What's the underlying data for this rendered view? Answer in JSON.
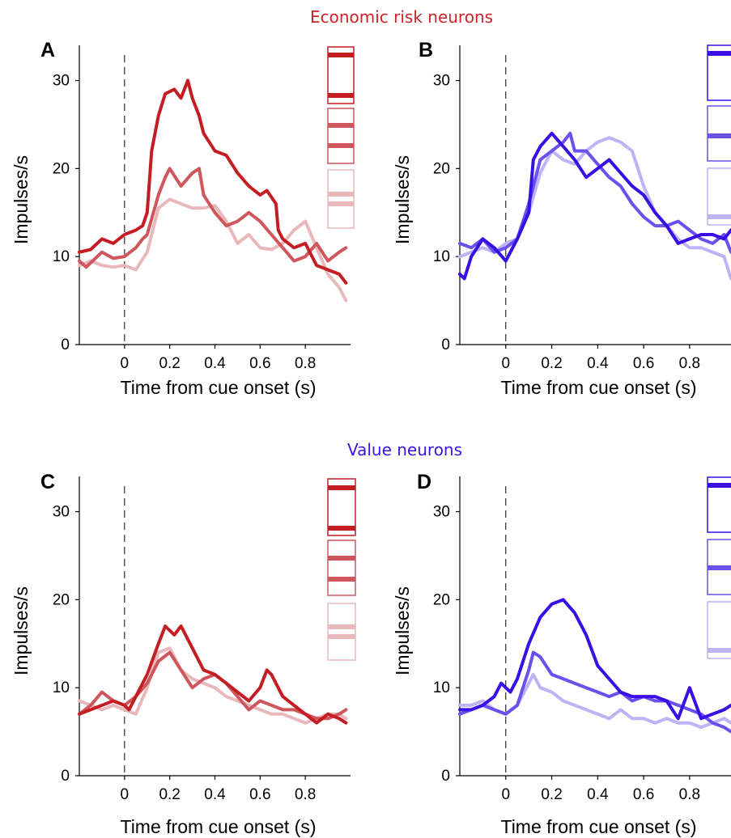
{
  "section_titles": [
    {
      "text": "Economic risk neurons",
      "color": "#cc2228"
    },
    {
      "text": "Value neurons",
      "color": "#3a14e6"
    }
  ],
  "colors": {
    "red": [
      "#c41e24",
      "#cf565c",
      "#e8b8ba"
    ],
    "blue": [
      "#3a0fe6",
      "#6a50ec",
      "#bcb4f5"
    ]
  },
  "chart_data": [
    {
      "panel": "A",
      "type": "line",
      "xlabel": "Time from cue onset (s)",
      "ylabel": "Impulses/s",
      "xlim": [
        -0.2,
        1.0
      ],
      "ylim": [
        0,
        34
      ],
      "xticks": [
        0,
        0.2,
        0.4,
        0.6,
        0.8
      ],
      "xtick_labels": [
        "0",
        "0.2",
        "0.4",
        "0.6",
        "0.8"
      ],
      "yticks": [
        0,
        10,
        20,
        30
      ],
      "ytick_labels": [
        "0",
        "10",
        "20",
        "30"
      ],
      "cue_marker_x": 0,
      "palette": "red",
      "series": [
        {
          "x": [
            -0.2,
            -0.15,
            -0.1,
            -0.05,
            0,
            0.05,
            0.08,
            0.1,
            0.12,
            0.15,
            0.18,
            0.22,
            0.25,
            0.28,
            0.3,
            0.33,
            0.35,
            0.4,
            0.45,
            0.5,
            0.55,
            0.6,
            0.63,
            0.67,
            0.68,
            0.7,
            0.75,
            0.8,
            0.85,
            0.9,
            0.95,
            0.98
          ],
          "y": [
            10.5,
            10.8,
            12,
            11.5,
            12.5,
            13,
            13.5,
            15,
            22,
            26,
            28.5,
            29,
            28,
            30,
            28,
            26,
            24,
            22,
            21.5,
            19.5,
            18,
            17,
            17.5,
            16,
            13,
            12,
            11,
            11.5,
            9,
            8.5,
            8,
            7
          ]
        },
        {
          "x": [
            -0.2,
            -0.17,
            -0.1,
            -0.05,
            0,
            0.05,
            0.08,
            0.1,
            0.15,
            0.18,
            0.2,
            0.25,
            0.3,
            0.33,
            0.35,
            0.4,
            0.45,
            0.5,
            0.55,
            0.6,
            0.65,
            0.7,
            0.75,
            0.8,
            0.85,
            0.9,
            0.95,
            0.98
          ],
          "y": [
            9.5,
            8.8,
            10.5,
            9.8,
            10,
            11,
            12,
            12.5,
            17,
            19,
            20,
            18,
            19.5,
            20,
            17,
            15,
            13.5,
            14,
            15,
            14,
            12.5,
            11,
            9.5,
            10,
            11.5,
            9.5,
            10.5,
            11
          ]
        },
        {
          "x": [
            -0.2,
            -0.15,
            -0.1,
            -0.05,
            0,
            0.05,
            0.1,
            0.15,
            0.2,
            0.25,
            0.3,
            0.35,
            0.4,
            0.45,
            0.5,
            0.55,
            0.6,
            0.65,
            0.7,
            0.75,
            0.8,
            0.85,
            0.9,
            0.95,
            0.98
          ],
          "y": [
            9,
            9.5,
            9,
            8.8,
            9,
            8.5,
            10.5,
            15.5,
            16.5,
            16,
            15.5,
            15.5,
            15.8,
            14,
            11.5,
            12.5,
            11,
            10.8,
            11.5,
            13,
            14,
            11,
            8,
            6.5,
            5
          ]
        }
      ]
    },
    {
      "panel": "B",
      "type": "line",
      "xlabel": "Time from cue onset (s)",
      "ylabel": "Impulses/s",
      "xlim": [
        -0.2,
        0.98
      ],
      "ylim": [
        0,
        34
      ],
      "xticks": [
        0,
        0.2,
        0.4,
        0.6,
        0.8
      ],
      "xtick_labels": [
        "0",
        "0.2",
        "0.4",
        "0.6",
        "0.8"
      ],
      "yticks": [
        0,
        10,
        20,
        30
      ],
      "ytick_labels": [
        "0",
        "10",
        "20",
        "30"
      ],
      "cue_marker_x": 0,
      "palette": "blue",
      "series": [
        {
          "x": [
            -0.2,
            -0.18,
            -0.15,
            -0.1,
            -0.05,
            0,
            0.05,
            0.1,
            0.12,
            0.15,
            0.2,
            0.25,
            0.3,
            0.35,
            0.4,
            0.45,
            0.5,
            0.55,
            0.6,
            0.65,
            0.7,
            0.75,
            0.8,
            0.85,
            0.9,
            0.95,
            0.98
          ],
          "y": [
            8,
            7.5,
            10,
            12,
            11,
            9.5,
            12,
            15,
            21,
            22.5,
            24,
            22.5,
            21,
            19,
            20,
            21,
            19.5,
            18,
            17,
            15,
            13.5,
            11.5,
            12,
            12.5,
            12.5,
            12,
            13
          ]
        },
        {
          "x": [
            -0.2,
            -0.15,
            -0.1,
            -0.05,
            0,
            0.05,
            0.1,
            0.15,
            0.2,
            0.25,
            0.28,
            0.3,
            0.35,
            0.4,
            0.45,
            0.5,
            0.55,
            0.6,
            0.65,
            0.7,
            0.75,
            0.8,
            0.85,
            0.9,
            0.95,
            0.98
          ],
          "y": [
            11.5,
            11,
            12,
            10.5,
            11,
            12,
            16,
            21,
            22,
            23,
            24,
            22,
            22,
            20.5,
            19,
            18,
            16,
            14.5,
            13.5,
            13.5,
            14,
            13,
            12,
            11.5,
            12.5,
            10.5
          ]
        },
        {
          "x": [
            -0.2,
            -0.15,
            -0.1,
            -0.05,
            0,
            0.05,
            0.1,
            0.15,
            0.2,
            0.25,
            0.3,
            0.35,
            0.4,
            0.45,
            0.5,
            0.55,
            0.6,
            0.65,
            0.7,
            0.75,
            0.8,
            0.85,
            0.9,
            0.95,
            0.98
          ],
          "y": [
            10,
            10.5,
            11,
            10.5,
            11.5,
            12,
            15,
            19.5,
            22,
            21,
            20.5,
            22,
            23,
            23.5,
            23,
            22,
            18,
            15,
            13.5,
            12,
            11,
            11,
            10.5,
            10,
            7.5
          ]
        }
      ]
    },
    {
      "panel": "C",
      "type": "line",
      "xlabel": "Time from cue onset (s)",
      "ylabel": "Impulses/s",
      "xlim": [
        -0.2,
        1.0
      ],
      "ylim": [
        0,
        34
      ],
      "xticks": [
        0,
        0.2,
        0.4,
        0.6,
        0.8
      ],
      "xtick_labels": [
        "0",
        "0.2",
        "0.4",
        "0.6",
        "0.8"
      ],
      "yticks": [
        0,
        10,
        20,
        30
      ],
      "ytick_labels": [
        "0",
        "10",
        "20",
        "30"
      ],
      "cue_marker_x": 0,
      "palette": "red",
      "series": [
        {
          "x": [
            -0.2,
            -0.15,
            -0.1,
            -0.05,
            0,
            0.02,
            0.05,
            0.1,
            0.15,
            0.18,
            0.22,
            0.25,
            0.3,
            0.35,
            0.4,
            0.45,
            0.5,
            0.55,
            0.6,
            0.63,
            0.65,
            0.7,
            0.75,
            0.8,
            0.85,
            0.9,
            0.95,
            0.98
          ],
          "y": [
            7,
            7.5,
            8,
            8.5,
            8,
            7.5,
            9,
            11.5,
            15,
            17,
            16,
            17,
            14.5,
            12,
            11.5,
            10.5,
            9.5,
            8.5,
            10,
            12,
            11.5,
            9,
            8,
            7,
            6,
            7,
            6.5,
            6
          ]
        },
        {
          "x": [
            -0.2,
            -0.15,
            -0.1,
            -0.05,
            0,
            0.05,
            0.1,
            0.15,
            0.2,
            0.25,
            0.3,
            0.35,
            0.4,
            0.45,
            0.5,
            0.55,
            0.6,
            0.65,
            0.7,
            0.75,
            0.8,
            0.85,
            0.9,
            0.95,
            0.98
          ],
          "y": [
            7,
            8,
            9.5,
            8.5,
            8,
            9,
            10.5,
            13,
            14,
            12,
            10,
            11,
            11.5,
            10.5,
            9,
            7.5,
            8.5,
            8,
            7.5,
            7.5,
            7,
            6.5,
            6.5,
            7,
            7.5
          ]
        },
        {
          "x": [
            -0.2,
            -0.15,
            -0.1,
            -0.05,
            0,
            0.05,
            0.1,
            0.15,
            0.2,
            0.25,
            0.3,
            0.35,
            0.4,
            0.45,
            0.5,
            0.55,
            0.6,
            0.65,
            0.7,
            0.75,
            0.8,
            0.85,
            0.9,
            0.95,
            0.98
          ],
          "y": [
            8.5,
            8,
            7.5,
            8,
            7.5,
            7,
            10,
            14,
            14.5,
            12,
            11,
            10.5,
            10,
            9,
            8.5,
            8,
            7.5,
            7,
            7,
            6.5,
            6,
            6.5,
            7,
            7,
            6.5
          ]
        }
      ]
    },
    {
      "panel": "D",
      "type": "line",
      "xlabel": "Time from cue onset (s)",
      "ylabel": "Impulses/s",
      "xlim": [
        -0.2,
        0.98
      ],
      "ylim": [
        0,
        34
      ],
      "xticks": [
        0,
        0.2,
        0.4,
        0.6,
        0.8
      ],
      "xtick_labels": [
        "0",
        "0.2",
        "0.4",
        "0.6",
        "0.8"
      ],
      "yticks": [
        0,
        10,
        20,
        30
      ],
      "ytick_labels": [
        "0",
        "10",
        "20",
        "30"
      ],
      "cue_marker_x": 0,
      "palette": "blue",
      "series": [
        {
          "x": [
            -0.2,
            -0.15,
            -0.1,
            -0.05,
            -0.02,
            0,
            0.02,
            0.05,
            0.1,
            0.15,
            0.2,
            0.25,
            0.3,
            0.35,
            0.4,
            0.45,
            0.5,
            0.55,
            0.6,
            0.65,
            0.7,
            0.75,
            0.8,
            0.85,
            0.9,
            0.95,
            0.98
          ],
          "y": [
            7.5,
            7.5,
            8,
            9,
            10.5,
            10,
            9.5,
            11,
            15,
            18,
            19.5,
            20,
            18.5,
            16,
            12.5,
            11,
            9.5,
            9,
            9,
            9,
            8.5,
            6.5,
            10,
            6.5,
            7,
            7.5,
            8
          ]
        },
        {
          "x": [
            -0.2,
            -0.15,
            -0.1,
            -0.05,
            0,
            0.05,
            0.1,
            0.12,
            0.15,
            0.2,
            0.25,
            0.3,
            0.35,
            0.4,
            0.45,
            0.5,
            0.55,
            0.6,
            0.65,
            0.7,
            0.75,
            0.8,
            0.85,
            0.9,
            0.95,
            0.98
          ],
          "y": [
            7,
            7.5,
            8,
            7.5,
            7,
            8,
            12,
            14,
            13.5,
            11.5,
            11,
            10.5,
            10,
            9.5,
            9,
            9.5,
            8.5,
            9,
            8.5,
            8.5,
            8,
            7.5,
            7,
            6,
            5.5,
            5
          ]
        },
        {
          "x": [
            -0.2,
            -0.15,
            -0.1,
            -0.05,
            0,
            0.05,
            0.1,
            0.12,
            0.15,
            0.2,
            0.25,
            0.3,
            0.35,
            0.4,
            0.45,
            0.5,
            0.55,
            0.6,
            0.65,
            0.7,
            0.75,
            0.8,
            0.85,
            0.9,
            0.95,
            0.98
          ],
          "y": [
            8,
            8,
            8.5,
            7.5,
            7,
            8,
            10.5,
            11.5,
            10,
            9.5,
            8.5,
            8,
            7.5,
            7,
            6.5,
            7.5,
            6.5,
            6.5,
            6,
            6.5,
            6,
            6,
            5.5,
            6,
            6.5,
            6
          ]
        }
      ]
    }
  ]
}
